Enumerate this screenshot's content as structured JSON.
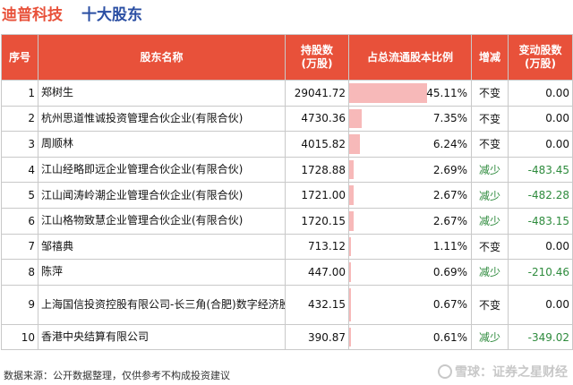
{
  "title": {
    "company": "迪普科技",
    "subtitle": "十大股东"
  },
  "columns": [
    "序号",
    "股东名称",
    "持股数\n(万股)",
    "占总流通股本比例",
    "增减",
    "变动股数\n(万股)"
  ],
  "rows": [
    {
      "seq": "1",
      "name": "郑树生",
      "shares": "29041.72",
      "ratio_text": "45.11%",
      "ratio": 45.11,
      "change_type": "不变",
      "change": "0.00",
      "dir": "same"
    },
    {
      "seq": "2",
      "name": "杭州思道惟诚投资管理合伙企业(有限合伙)",
      "shares": "4730.36",
      "ratio_text": "7.35%",
      "ratio": 7.35,
      "change_type": "不变",
      "change": "0.00",
      "dir": "same"
    },
    {
      "seq": "3",
      "name": "周顺林",
      "shares": "4015.82",
      "ratio_text": "6.24%",
      "ratio": 6.24,
      "change_type": "不变",
      "change": "0.00",
      "dir": "same"
    },
    {
      "seq": "4",
      "name": "江山经略即远企业管理合伙企业(有限合伙)",
      "shares": "1728.88",
      "ratio_text": "2.69%",
      "ratio": 2.69,
      "change_type": "减少",
      "change": "-483.45",
      "dir": "down"
    },
    {
      "seq": "5",
      "name": "江山闻涛岭潮企业管理合伙企业(有限合伙)",
      "shares": "1721.00",
      "ratio_text": "2.67%",
      "ratio": 2.67,
      "change_type": "减少",
      "change": "-482.28",
      "dir": "down"
    },
    {
      "seq": "6",
      "name": "江山格物致慧企业管理合伙企业(有限合伙)",
      "shares": "1720.15",
      "ratio_text": "2.67%",
      "ratio": 2.67,
      "change_type": "减少",
      "change": "-483.15",
      "dir": "down"
    },
    {
      "seq": "7",
      "name": "邹禧典",
      "shares": "713.12",
      "ratio_text": "1.11%",
      "ratio": 1.11,
      "change_type": "不变",
      "change": "0.00",
      "dir": "same"
    },
    {
      "seq": "8",
      "name": "陈萍",
      "shares": "447.00",
      "ratio_text": "0.69%",
      "ratio": 0.69,
      "change_type": "减少",
      "change": "-210.46",
      "dir": "down"
    },
    {
      "seq": "9",
      "name": "上海国信投资控股有限公司-长三角(合肥)数字经济股权投资基金合伙企业(有限合伙)",
      "shares": "432.15",
      "ratio_text": "0.67%",
      "ratio": 0.67,
      "change_type": "不变",
      "change": "0.00",
      "dir": "same"
    },
    {
      "seq": "10",
      "name": "香港中央结算有限公司",
      "shares": "390.87",
      "ratio_text": "0.61%",
      "ratio": 0.61,
      "change_type": "减少",
      "change": "-349.02",
      "dir": "down"
    }
  ],
  "footer": {
    "source": "数据来源：公开数据整理，仅供参考不构成投资建议",
    "brand": "雪球：证券之星财经"
  },
  "colors": {
    "header_bg": "#e8513a",
    "subtitle": "#2b4fa3",
    "bar": "#f7b9b9",
    "decrease": "#2e8b3d"
  }
}
